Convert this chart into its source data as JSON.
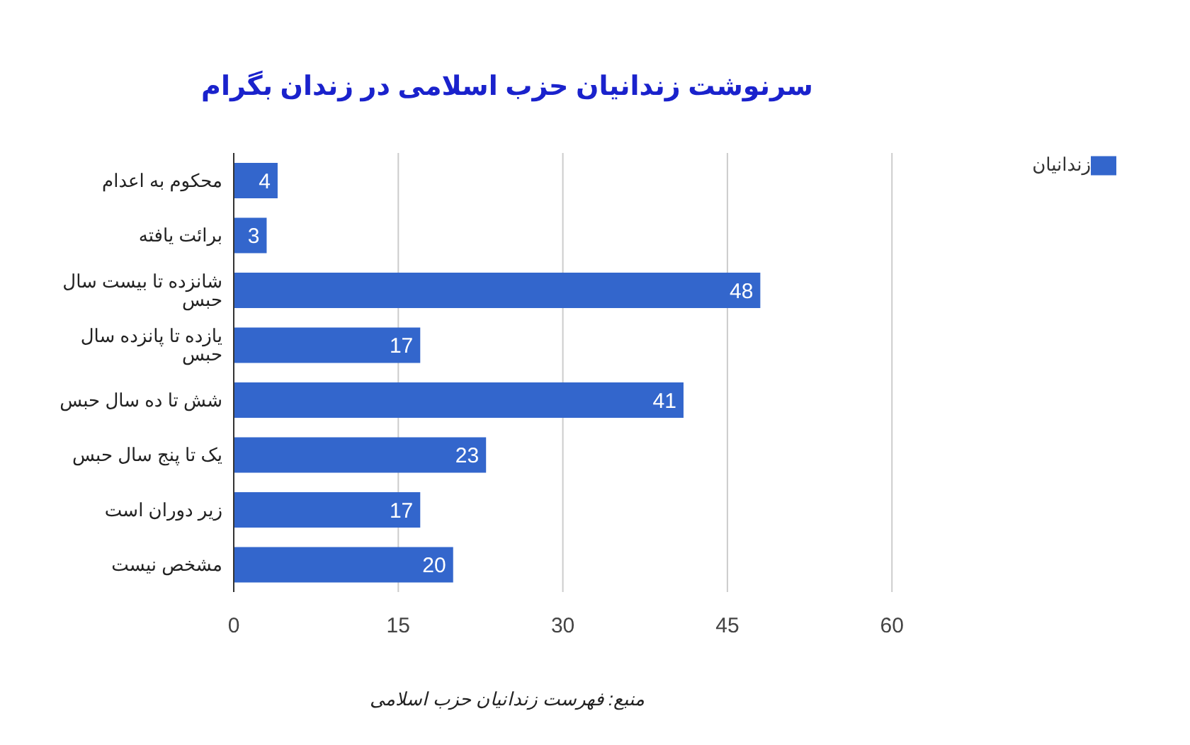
{
  "chart_data": {
    "type": "bar",
    "orientation": "horizontal",
    "title": "سرنوشت زندانیان حزب اسلامی در زندان بگرام",
    "categories": [
      "محکوم به اعدام",
      "برائت یافته",
      "شانزده تا بیست سال حبس",
      "یازده تا پانزده سال حبس",
      "شش تا ده سال حبس",
      "یک تا پنج سال حبس",
      "زیر دوران است",
      "مشخص نیست"
    ],
    "series": [
      {
        "name": "زندانیان",
        "color": "#3366cc",
        "values": [
          4,
          3,
          48,
          17,
          41,
          23,
          17,
          20
        ]
      }
    ],
    "xlim": [
      0,
      60
    ],
    "xticks": [
      0,
      15,
      30,
      45,
      60
    ],
    "grid": "x",
    "legend": "top right",
    "data_labels": true,
    "annotations": [
      "منبع: فهرست زندانیان حزب اسلامی"
    ]
  }
}
